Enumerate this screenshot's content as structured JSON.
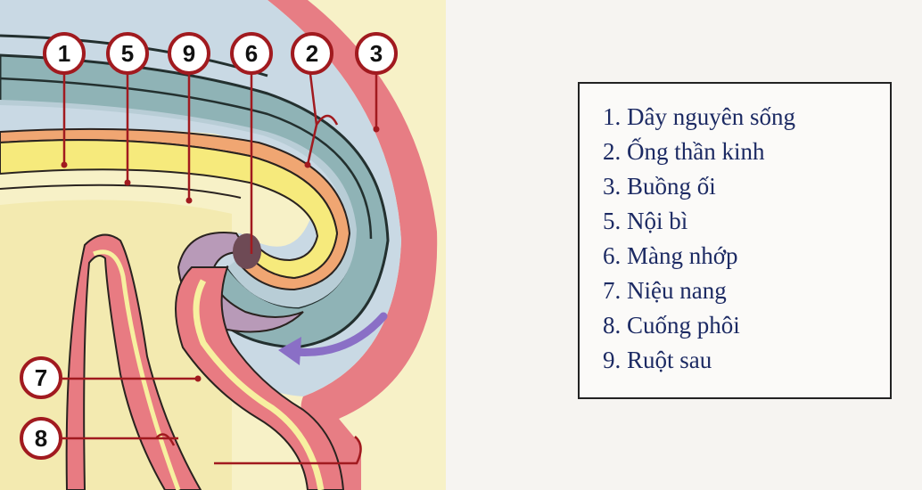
{
  "figure": {
    "markers": [
      {
        "id": "m1",
        "number": "1"
      },
      {
        "id": "m5",
        "number": "5"
      },
      {
        "id": "m9",
        "number": "9"
      },
      {
        "id": "m6",
        "number": "6"
      },
      {
        "id": "m2",
        "number": "2"
      },
      {
        "id": "m3",
        "number": "3"
      },
      {
        "id": "m7",
        "number": "7"
      },
      {
        "id": "m8",
        "number": "8"
      }
    ]
  },
  "legend": {
    "items": [
      "1. Dây nguyên sống",
      "2. Ống thần kinh",
      "3. Buồng ối",
      "5. Nội bì",
      "6. Màng nhớp",
      "7. Niệu nang",
      "8. Cuống phôi",
      "9. Ruột sau"
    ]
  },
  "colors": {
    "background": "#f6f4f1",
    "yolk": "#f5efb4",
    "amnion_cavity": "#c9d9e4",
    "neural_tube": "#8fb3b6",
    "endoderm_orange": "#f0a672",
    "pink_tissue": "#e87b82",
    "yellow_layer": "#f6ea7c",
    "cloacal_membrane": "#6e4a55",
    "arrow_purple": "#8a6fc6",
    "marker_red": "#a11a1f"
  }
}
